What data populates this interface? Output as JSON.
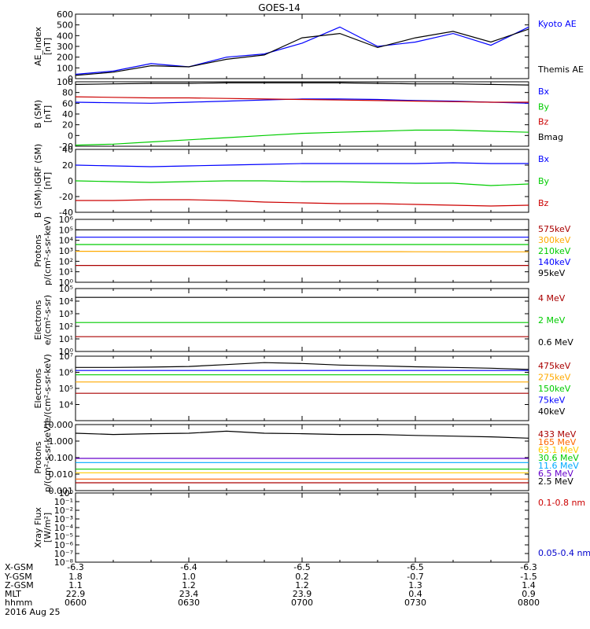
{
  "title": "GOES-14",
  "panels": [
    {
      "id": "ae",
      "ylabel_lines": [
        "AE_index",
        "[nT]"
      ],
      "scale": "linear",
      "ylim": [
        0,
        600
      ],
      "ticks": [
        "0",
        "100",
        "200",
        "300",
        "400",
        "500",
        "600"
      ],
      "tick_values": [
        0,
        100,
        200,
        300,
        400,
        500,
        600
      ],
      "legend": [
        {
          "label": "Kyoto AE",
          "color": "#0000ff"
        },
        {
          "label": "Themis AE",
          "color": "#000000"
        }
      ]
    },
    {
      "id": "bsm",
      "ylabel_lines": [
        "B (SM)",
        "[nT]"
      ],
      "scale": "linear",
      "ylim": [
        -20,
        100
      ],
      "ticks": [
        "-20",
        "0",
        "20",
        "40",
        "60",
        "80",
        "100"
      ],
      "tick_values": [
        -20,
        0,
        20,
        40,
        60,
        80,
        100
      ],
      "legend": [
        {
          "label": "Bx",
          "color": "#0000ff"
        },
        {
          "label": "By",
          "color": "#00cc00"
        },
        {
          "label": "Bz",
          "color": "#cc0000"
        },
        {
          "label": "Bmag",
          "color": "#000000"
        }
      ]
    },
    {
      "id": "bigrf",
      "ylabel_lines": [
        "B (SM)-IGRF (SM)",
        "[nT]"
      ],
      "scale": "linear",
      "ylim": [
        -40,
        40
      ],
      "ticks": [
        "-40",
        "-20",
        "0",
        "20",
        "40"
      ],
      "tick_values": [
        -40,
        -20,
        0,
        20,
        40
      ],
      "legend": [
        {
          "label": "Bx",
          "color": "#0000ff"
        },
        {
          "label": "By",
          "color": "#00cc00"
        },
        {
          "label": "Bz",
          "color": "#cc0000"
        }
      ]
    },
    {
      "id": "protons1",
      "ylabel_lines": [
        "Protons",
        "p/(cm²-s-sr-keV)"
      ],
      "scale": "log",
      "ylim": [
        1,
        1000000
      ],
      "ticks": [
        "10⁰",
        "10¹",
        "10²",
        "10³",
        "10⁴",
        "10⁵",
        "10⁶"
      ],
      "tick_values": [
        1,
        10,
        100,
        1000,
        10000,
        100000,
        1000000
      ],
      "legend": [
        {
          "label": "575keV",
          "color": "#aa0000"
        },
        {
          "label": "300keV",
          "color": "#ffaa00"
        },
        {
          "label": "210keV",
          "color": "#00cc00"
        },
        {
          "label": "140keV",
          "color": "#0000ff"
        },
        {
          "label": "95keV",
          "color": "#000000"
        }
      ]
    },
    {
      "id": "electrons1",
      "ylabel_lines": [
        "Electrons",
        "e/(cm²-s-sr)"
      ],
      "scale": "log",
      "ylim": [
        1,
        100000
      ],
      "ticks": [
        "10⁰",
        "10¹",
        "10²",
        "10³",
        "10⁴",
        "10⁵"
      ],
      "tick_values": [
        1,
        10,
        100,
        1000,
        10000,
        100000
      ],
      "legend": [
        {
          "label": "4 MeV",
          "color": "#aa0000"
        },
        {
          "label": "2 MeV",
          "color": "#00cc00"
        },
        {
          "label": "0.6 MeV",
          "color": "#000000"
        }
      ]
    },
    {
      "id": "electrons2",
      "ylabel_lines": [
        "Electrons",
        "e/(cm²-s-sr-keV)"
      ],
      "scale": "log",
      "ylim": [
        1000,
        10000000
      ],
      "ticks": [
        "10⁴",
        "10⁵",
        "10⁶",
        "10⁷"
      ],
      "tick_values": [
        10000,
        100000,
        1000000,
        10000000
      ],
      "legend": [
        {
          "label": "475keV",
          "color": "#aa0000"
        },
        {
          "label": "275keV",
          "color": "#ffaa00"
        },
        {
          "label": "150keV",
          "color": "#00cc00"
        },
        {
          "label": "75keV",
          "color": "#0000ff"
        },
        {
          "label": "40keV",
          "color": "#000000"
        }
      ]
    },
    {
      "id": "protons2",
      "ylabel_lines": [
        "Protons",
        "p/(cm²-s-sr-keV)"
      ],
      "scale": "log",
      "ylim": [
        0.001,
        10
      ],
      "ticks": [
        "0.001",
        "0.010",
        "0.100",
        "1.000",
        "10.000"
      ],
      "tick_values": [
        0.001,
        0.01,
        0.1,
        1,
        10
      ],
      "legend": [
        {
          "label": "433 MeV",
          "color": "#aa0000"
        },
        {
          "label": "165 MeV",
          "color": "#ff6600"
        },
        {
          "label": "63.1 MeV",
          "color": "#ffcc00"
        },
        {
          "label": "30.6 MeV",
          "color": "#00cc00"
        },
        {
          "label": "11.6 MeV",
          "color": "#00aaff"
        },
        {
          "label": "6.5 MeV",
          "color": "#6600cc"
        },
        {
          "label": "2.5 MeV",
          "color": "#000000"
        }
      ]
    },
    {
      "id": "xray",
      "ylabel_lines": [
        "Xray Flux",
        "[W/m²]"
      ],
      "scale": "log",
      "ylim": [
        1e-08,
        1
      ],
      "ticks": [
        "10⁻⁸",
        "10⁻⁷",
        "10⁻⁶",
        "10⁻⁵",
        "10⁻⁴",
        "10⁻³",
        "10⁻²",
        "10⁻¹",
        "10⁰"
      ],
      "tick_values": [
        1e-08,
        1e-07,
        1e-06,
        1e-05,
        0.0001,
        0.001,
        0.01,
        0.1,
        1
      ],
      "legend": [
        {
          "label": "0.1-0.8 nm",
          "color": "#cc0000"
        },
        {
          "label": "0.05-0.4 nm",
          "color": "#0000cc"
        }
      ]
    }
  ],
  "footer": {
    "row_labels": [
      "X-GSM",
      "Y-GSM",
      "Z-GSM",
      "MLT",
      "hhmm"
    ],
    "columns": [
      [
        "-6.3",
        "1.8",
        "1.1",
        "22.9",
        "0600"
      ],
      [
        "-6.4",
        "1.0",
        "1.2",
        "23.4",
        "0630"
      ],
      [
        "-6.5",
        "0.2",
        "1.2",
        "23.9",
        "0700"
      ],
      [
        "-6.5",
        "-0.7",
        "1.3",
        "0.4",
        "0730"
      ],
      [
        "-6.3",
        "-1.5",
        "1.4",
        "0.9",
        "0800"
      ]
    ],
    "date": "2016 Aug 25"
  },
  "chart_data": {
    "type": "line",
    "title": "GOES-14",
    "x_label": "hhmm",
    "x": [
      "0600",
      "0610",
      "0620",
      "0630",
      "0640",
      "0650",
      "0700",
      "0710",
      "0720",
      "0730",
      "0740",
      "0750",
      "0800"
    ],
    "panels": [
      {
        "ylabel": "AE_index [nT]",
        "series": [
          {
            "name": "Kyoto AE",
            "values": [
              40,
              70,
              140,
              110,
              200,
              230,
              330,
              480,
              300,
              340,
              420,
              310,
              480
            ]
          },
          {
            "name": "Themis AE",
            "values": [
              30,
              60,
              120,
              110,
              180,
              220,
              380,
              420,
              290,
              380,
              440,
              340,
              460
            ]
          }
        ]
      },
      {
        "ylabel": "B (SM) [nT]",
        "series": [
          {
            "name": "Bx",
            "values": [
              62,
              61,
              60,
              62,
              64,
              66,
              68,
              68,
              67,
              65,
              64,
              62,
              60
            ]
          },
          {
            "name": "By",
            "values": [
              -18,
              -16,
              -12,
              -8,
              -4,
              0,
              4,
              6,
              8,
              10,
              10,
              8,
              6
            ]
          },
          {
            "name": "Bz",
            "values": [
              72,
              71,
              70,
              70,
              69,
              68,
              67,
              66,
              65,
              64,
              63,
              62,
              62
            ]
          },
          {
            "name": "Bmag",
            "values": [
              95,
              96,
              97,
              97,
              98,
              98,
              98,
              98,
              97,
              96,
              96,
              95,
              94
            ]
          }
        ]
      },
      {
        "ylabel": "B (SM)-IGRF (SM) [nT]",
        "series": [
          {
            "name": "Bx",
            "values": [
              20,
              19,
              18,
              19,
              20,
              21,
              22,
              22,
              22,
              22,
              23,
              22,
              22
            ]
          },
          {
            "name": "By",
            "values": [
              0,
              -1,
              -2,
              -1,
              0,
              0,
              -1,
              -1,
              -2,
              -3,
              -3,
              -6,
              -4
            ]
          },
          {
            "name": "Bz",
            "values": [
              -25,
              -25,
              -24,
              -24,
              -25,
              -27,
              -28,
              -29,
              -29,
              -30,
              -31,
              -32,
              -31
            ]
          }
        ]
      },
      {
        "ylabel": "Protons p/(cm²-s-sr-keV)",
        "series": [
          {
            "name": "575keV",
            "values": [
              40,
              40,
              40,
              40,
              40,
              40,
              40,
              40,
              40,
              40,
              40,
              40,
              40
            ]
          },
          {
            "name": "300keV",
            "values": [
              900,
              900,
              880,
              870,
              860,
              850,
              840,
              830,
              820,
              810,
              800,
              800,
              800
            ]
          },
          {
            "name": "210keV",
            "values": [
              4000,
              4000,
              4000,
              4000,
              4000,
              4000,
              4000,
              4000,
              4000,
              4000,
              4000,
              4000,
              4000
            ]
          },
          {
            "name": "140keV",
            "values": [
              20000,
              20000,
              20000,
              20000,
              20000,
              20000,
              20000,
              20000,
              20000,
              20000,
              20000,
              20000,
              20000
            ]
          },
          {
            "name": "95keV",
            "values": [
              100000,
              100000,
              100000,
              100000,
              100000,
              100000,
              100000,
              100000,
              100000,
              100000,
              100000,
              100000,
              100000
            ]
          }
        ]
      },
      {
        "ylabel": "Electrons e/(cm²-s-sr)",
        "series": [
          {
            "name": "4 MeV",
            "values": [
              15,
              15,
              15,
              15,
              15,
              15,
              15,
              15,
              15,
              15,
              15,
              15,
              15
            ]
          },
          {
            "name": "2 MeV",
            "values": [
              200,
              200,
              200,
              200,
              200,
              200,
              200,
              200,
              200,
              200,
              200,
              200,
              200
            ]
          },
          {
            "name": "0.6 MeV",
            "values": [
              20000,
              20000,
              20000,
              20000,
              20000,
              20000,
              20000,
              20000,
              20000,
              20000,
              20000,
              20000,
              20000
            ]
          }
        ]
      },
      {
        "ylabel": "Electrons e/(cm²-s-sr-keV)",
        "series": [
          {
            "name": "475keV",
            "values": [
              50000,
              50000,
              50000,
              50000,
              50000,
              50000,
              50000,
              50000,
              50000,
              50000,
              50000,
              50000,
              50000
            ]
          },
          {
            "name": "275keV",
            "values": [
              250000,
              250000,
              250000,
              250000,
              250000,
              250000,
              250000,
              250000,
              250000,
              250000,
              250000,
              250000,
              250000
            ]
          },
          {
            "name": "150keV",
            "values": [
              700000,
              700000,
              700000,
              700000,
              700000,
              700000,
              700000,
              700000,
              700000,
              700000,
              700000,
              700000,
              700000
            ]
          },
          {
            "name": "75keV",
            "values": [
              1300000,
              1300000,
              1300000,
              1300000,
              1300000,
              1300000,
              1300000,
              1300000,
              1300000,
              1300000,
              1300000,
              1300000,
              1300000
            ]
          },
          {
            "name": "40keV",
            "values": [
              2000000,
              2000000,
              2100000,
              2300000,
              3000000,
              4000000,
              3500000,
              2800000,
              2500000,
              2200000,
              2000000,
              1800000,
              1500000
            ]
          }
        ]
      },
      {
        "ylabel": "Protons p/(cm²-s-sr-keV)",
        "series": [
          {
            "name": "433 MeV",
            "values": [
              0.003,
              0.003,
              0.003,
              0.003,
              0.003,
              0.003,
              0.003,
              0.003,
              0.003,
              0.003,
              0.003,
              0.003,
              0.003
            ]
          },
          {
            "name": "165 MeV",
            "values": [
              0.005,
              0.005,
              0.005,
              0.005,
              0.005,
              0.005,
              0.005,
              0.005,
              0.005,
              0.005,
              0.005,
              0.005,
              0.005
            ]
          },
          {
            "name": "63.1 MeV",
            "values": [
              0.012,
              0.012,
              0.012,
              0.012,
              0.012,
              0.012,
              0.012,
              0.012,
              0.012,
              0.012,
              0.012,
              0.012,
              0.012
            ]
          },
          {
            "name": "30.6 MeV",
            "values": [
              0.02,
              0.02,
              0.02,
              0.02,
              0.02,
              0.02,
              0.02,
              0.02,
              0.02,
              0.02,
              0.02,
              0.02,
              0.02
            ]
          },
          {
            "name": "11.6 MeV",
            "values": [
              0.05,
              0.05,
              0.05,
              0.05,
              0.05,
              0.05,
              0.05,
              0.05,
              0.05,
              0.05,
              0.05,
              0.05,
              0.05
            ]
          },
          {
            "name": "6.5 MeV",
            "values": [
              0.09,
              0.09,
              0.09,
              0.09,
              0.09,
              0.09,
              0.09,
              0.09,
              0.09,
              0.09,
              0.09,
              0.09,
              0.09
            ]
          },
          {
            "name": "2.5 MeV",
            "values": [
              3,
              2.5,
              2.8,
              3,
              4,
              3,
              2.8,
              2.5,
              2.5,
              2.2,
              2,
              1.8,
              1.5
            ]
          }
        ]
      },
      {
        "ylabel": "Xray Flux [W/m²]",
        "series": []
      }
    ]
  }
}
